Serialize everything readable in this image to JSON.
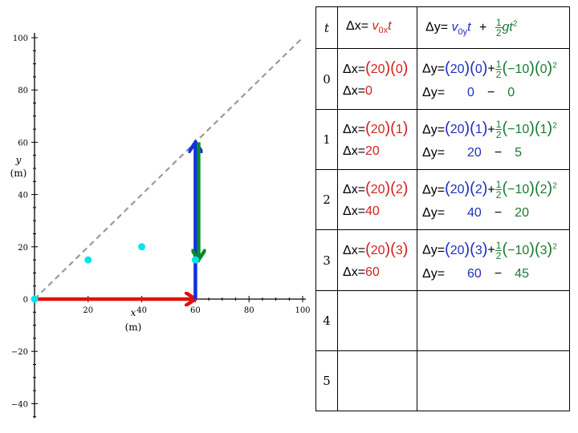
{
  "chart_data": {
    "type": "scatter",
    "xlabel": "x\n(m)",
    "ylabel": "y\n(m)",
    "xlim": [
      0,
      100
    ],
    "ylim": [
      -40,
      100
    ],
    "x_ticks": [
      20,
      40,
      60,
      80,
      100
    ],
    "y_ticks": [
      -40,
      -20,
      0,
      20,
      40,
      60,
      80,
      100
    ],
    "x_tick_labels": [
      "20",
      "40",
      "60",
      "80",
      "100"
    ],
    "y_tick_labels": [
      "−40",
      "−20",
      "0",
      "20",
      "40",
      "60",
      "80",
      "100"
    ],
    "points": [
      {
        "x": 0,
        "y": 0,
        "color": "#00e5ee"
      },
      {
        "x": 20,
        "y": 15,
        "color": "#00e5ee"
      },
      {
        "x": 40,
        "y": 20,
        "color": "#00e5ee"
      },
      {
        "x": 60,
        "y": 15,
        "color": "#00e5ee"
      }
    ],
    "dashed_line": {
      "from": [
        0,
        0
      ],
      "to": [
        100,
        100
      ],
      "color": "#9a9a9a"
    },
    "vectors": [
      {
        "name": "horizontal-displacement",
        "from": [
          0,
          0
        ],
        "to": [
          60,
          0
        ],
        "color": "#e01010"
      },
      {
        "name": "vertical-initial",
        "from": [
          60,
          0
        ],
        "to": [
          60,
          60
        ],
        "color": "#1030e0"
      },
      {
        "name": "vertical-gravity",
        "from": [
          60,
          60
        ],
        "to": [
          60,
          15
        ],
        "color": "#0a8a2a"
      }
    ]
  },
  "table": {
    "header": {
      "t": "t",
      "dx_lhs": "Δx",
      "eq": "=",
      "v": "v",
      "dx_sub": "0x",
      "dy_lhs": "Δy",
      "dy_sub": "0y",
      "t_var": "t",
      "plus": "+",
      "one": "1",
      "two": "2",
      "g": "g",
      "t2": "t",
      "sq": "2"
    },
    "rows": [
      {
        "t": "0",
        "vx": "20",
        "tval": "0",
        "vy": "20",
        "g": "−10",
        "dx": "0",
        "dy_a": "0",
        "minus": "−",
        "dy_b": "0"
      },
      {
        "t": "1",
        "vx": "20",
        "tval": "1",
        "vy": "20",
        "g": "−10",
        "dx": "20",
        "dy_a": "20",
        "minus": "−",
        "dy_b": "5"
      },
      {
        "t": "2",
        "vx": "20",
        "tval": "2",
        "vy": "20",
        "g": "−10",
        "dx": "40",
        "dy_a": "40",
        "minus": "−",
        "dy_b": "20"
      },
      {
        "t": "3",
        "vx": "20",
        "tval": "3",
        "vy": "20",
        "g": "−10",
        "dx": "60",
        "dy_a": "60",
        "minus": "−",
        "dy_b": "45"
      },
      {
        "t": "4"
      },
      {
        "t": "5"
      }
    ]
  },
  "colors": {
    "horizontal": "#d42020",
    "vertical_initial": "#1f2fbf",
    "gravity": "#1a7a32",
    "points": "#00e5ee",
    "dashed": "#9a9a9a"
  }
}
